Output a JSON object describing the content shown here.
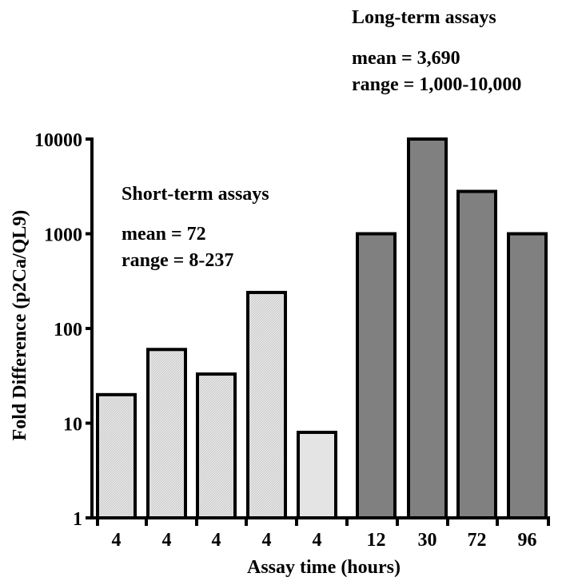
{
  "chart_data": {
    "type": "bar",
    "title": "",
    "xlabel": "Assay time (hours)",
    "ylabel": "Fold Difference (p2Ca/QL9)",
    "y_scale": "log",
    "ylim": [
      1,
      10000
    ],
    "y_ticks": [
      "1",
      "10",
      "100",
      "1000",
      "10000"
    ],
    "grid": false,
    "categories": [
      "4",
      "4",
      "4",
      "4",
      "4",
      "12",
      "30",
      "72",
      "96"
    ],
    "values": [
      20,
      60,
      33,
      240,
      8,
      1000,
      10000,
      2800,
      1000
    ],
    "bar_groups": [
      "short",
      "short",
      "short",
      "short",
      "short",
      "long",
      "long",
      "long",
      "long"
    ],
    "group_colors": {
      "short": "#e4e4e4",
      "long": "#808080"
    },
    "annotations": {
      "long_term": {
        "title": "Long-term assays",
        "mean": "mean = 3,690",
        "range": "range = 1,000-10,000"
      },
      "short_term": {
        "title": "Short-term assays",
        "mean": "mean = 72",
        "range": "range = 8-237"
      }
    }
  }
}
